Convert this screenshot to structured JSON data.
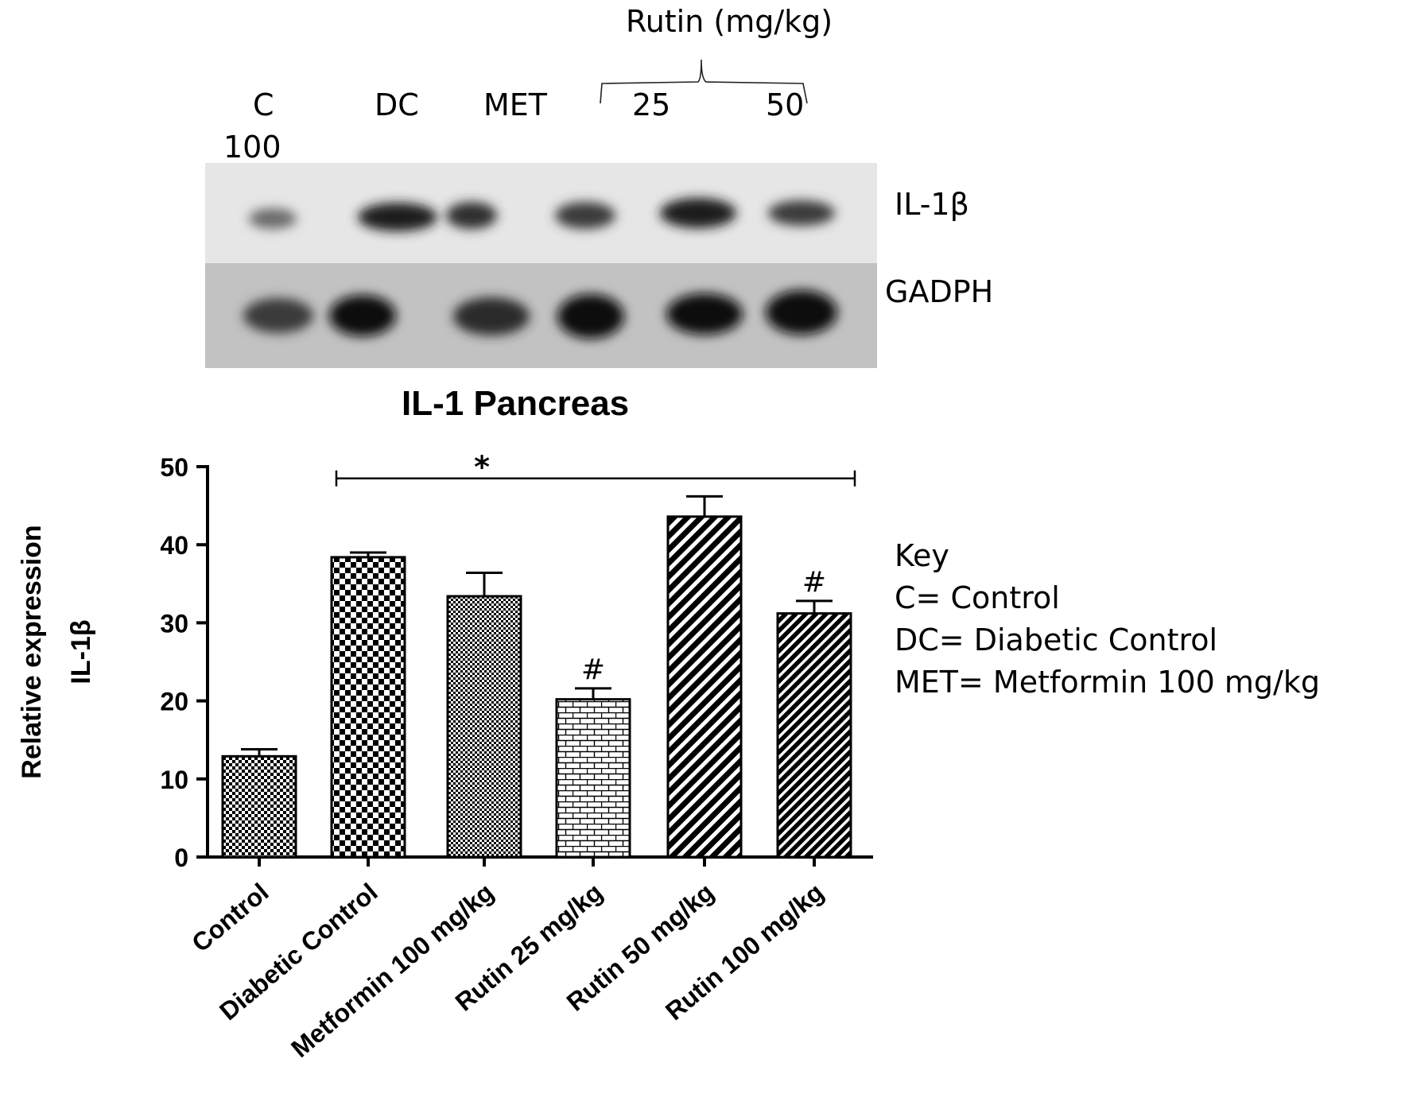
{
  "blot": {
    "rutin_group_label": "Rutin (mg/kg)",
    "lane_labels": [
      "C",
      "DC",
      "MET",
      "25",
      "50",
      "100"
    ],
    "band_labels": [
      "IL-1β",
      "GADPH"
    ]
  },
  "key": {
    "heading": "Key",
    "lines": [
      "C= Control",
      "DC= Diabetic Control",
      "MET= Metformin 100 mg/kg"
    ]
  },
  "chart_data": {
    "type": "bar",
    "title": "IL-1 Pancreas",
    "ylabel_line1": "Relative expression",
    "ylabel_line2": "IL-1β",
    "xlabel": "",
    "ylim": [
      0,
      50
    ],
    "yticks": [
      0,
      10,
      20,
      30,
      40,
      50
    ],
    "categories": [
      "Control",
      "Diabetic Control",
      "Metformin 100 mg/kg",
      "Rutin 25 mg/kg",
      "Rutin 50 mg/kg",
      "Rutin 100 mg/kg"
    ],
    "values": [
      12.9,
      38.4,
      33.4,
      20.2,
      43.6,
      31.2
    ],
    "errors": [
      0.9,
      0.6,
      3.0,
      1.4,
      2.6,
      1.6
    ],
    "bar_markers": [
      "",
      "",
      "",
      "#",
      "",
      "#"
    ],
    "significance_bracket": {
      "from_category": 1,
      "to_category": 5,
      "y": 48.5,
      "label": "*"
    },
    "grid": false,
    "legend": "none"
  }
}
